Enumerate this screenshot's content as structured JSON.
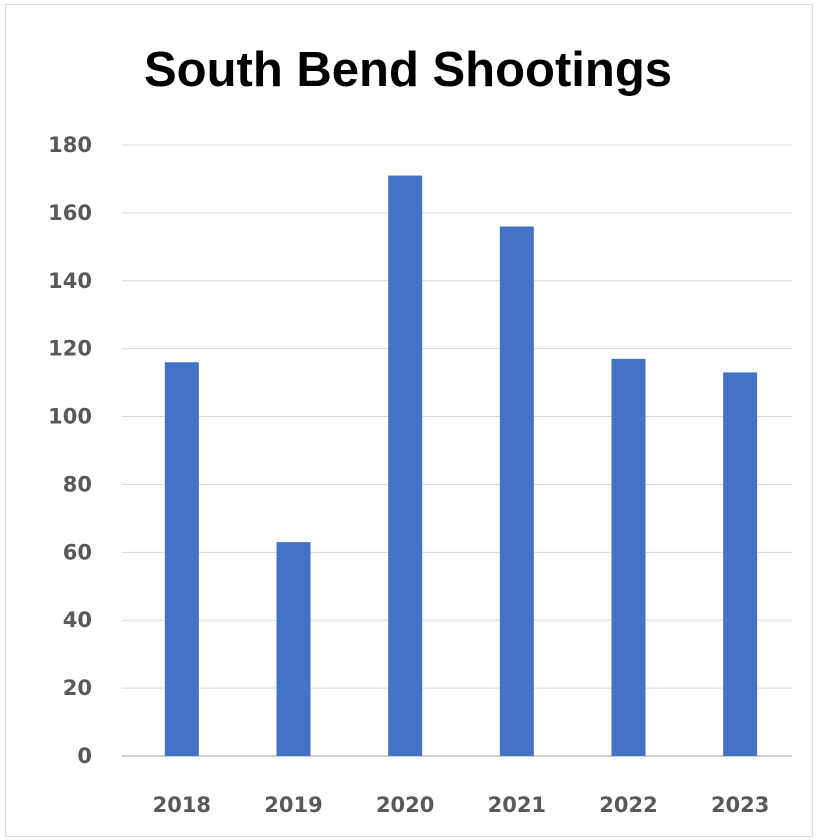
{
  "chart_data": {
    "type": "bar",
    "title": "South Bend Shootings",
    "xlabel": "",
    "ylabel": "",
    "categories": [
      "2018",
      "2019",
      "2020",
      "2021",
      "2022",
      "2023"
    ],
    "values": [
      116,
      63,
      171,
      156,
      117,
      113
    ],
    "ylim": [
      0,
      180
    ],
    "yticks": [
      "0",
      "20",
      "40",
      "60",
      "80",
      "100",
      "120",
      "140",
      "160",
      "180"
    ],
    "grid": true,
    "legend": "none",
    "bar_color": "#4472C4",
    "gridline_color": "#d9d9d9",
    "axis_color": "#bfbfbf"
  }
}
